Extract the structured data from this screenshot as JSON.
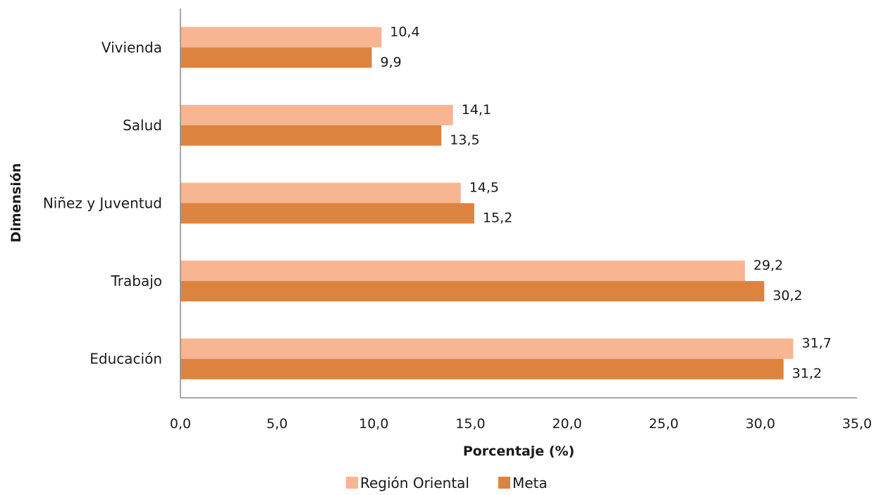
{
  "chart_data": {
    "type": "bar",
    "orientation": "horizontal",
    "title": "",
    "xlabel": "Porcentaje (%)",
    "ylabel": "Dimensión",
    "xlim": [
      0,
      35
    ],
    "xticks": [
      "0,0",
      "5,0",
      "10,0",
      "15,0",
      "20,0",
      "25,0",
      "30,0",
      "35,0"
    ],
    "categories": [
      "Vivienda",
      "Salud",
      "Niñez y Juventud",
      "Trabajo",
      "Educación"
    ],
    "series": [
      {
        "name": "Región Oriental",
        "color": "#f8b592",
        "values": [
          10.4,
          14.1,
          14.5,
          29.2,
          31.7
        ],
        "labels": [
          "10,4",
          "14,1",
          "14,5",
          "29,2",
          "31,7"
        ]
      },
      {
        "name": "Meta",
        "color": "#dc843f",
        "values": [
          9.9,
          13.5,
          15.2,
          30.2,
          31.2
        ],
        "labels": [
          "9,9",
          "13,5",
          "15,2",
          "30,2",
          "31,2"
        ]
      }
    ],
    "grid": false,
    "legend": "bottom"
  }
}
